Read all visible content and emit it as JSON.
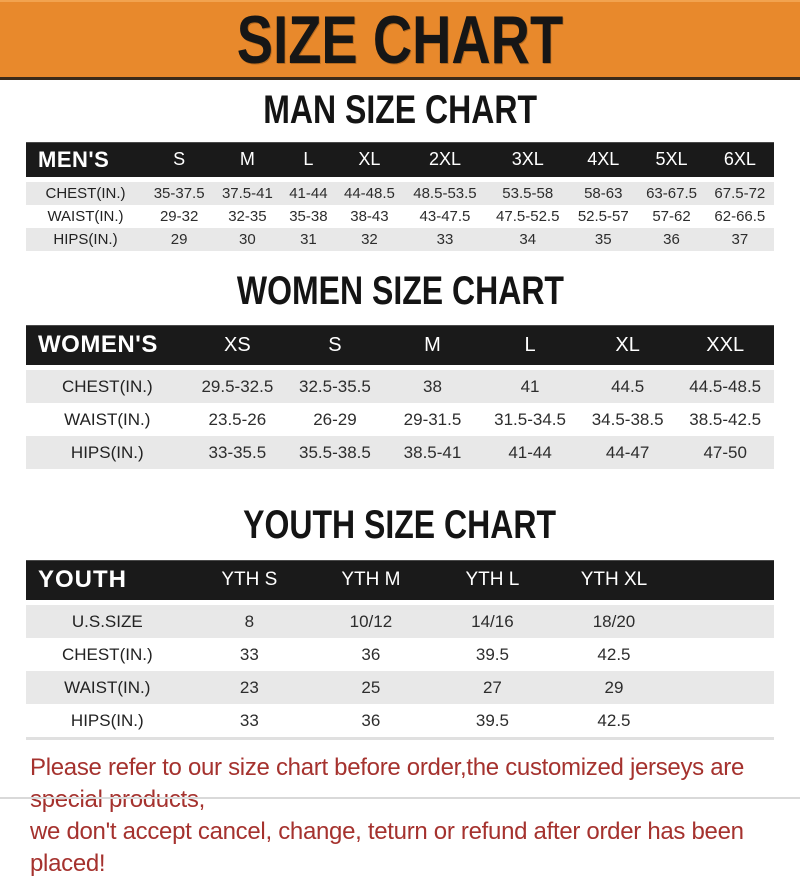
{
  "banner": {
    "title": "SIZE CHART"
  },
  "colors": {
    "banner_orange": "#e8892c",
    "table_header_black": "#1a1a1a",
    "row_gray": "#e8e8e8",
    "notice_red": "#a5322e"
  },
  "sections": [
    {
      "heading": "MAN SIZE CHART",
      "table": {
        "header_label": "MEN'S",
        "columns": [
          "S",
          "M",
          "L",
          "XL",
          "2XL",
          "3XL",
          "4XL",
          "5XL",
          "6XL"
        ],
        "rows": [
          {
            "label": "CHEST(IN.)",
            "values": [
              "35-37.5",
              "37.5-41",
              "41-44",
              "44-48.5",
              "48.5-53.5",
              "53.5-58",
              "58-63",
              "63-67.5",
              "67.5-72"
            ]
          },
          {
            "label": "WAIST(IN.)",
            "values": [
              "29-32",
              "32-35",
              "35-38",
              "38-43",
              "43-47.5",
              "47.5-52.5",
              "52.5-57",
              "57-62",
              "62-66.5"
            ]
          },
          {
            "label": "HIPS(IN.)",
            "values": [
              "29",
              "30",
              "31",
              "32",
              "33",
              "34",
              "35",
              "36",
              "37"
            ]
          }
        ]
      }
    },
    {
      "heading": "WOMEN SIZE CHART",
      "table": {
        "header_label": "WOMEN'S",
        "columns": [
          "XS",
          "S",
          "M",
          "L",
          "XL",
          "XXL"
        ],
        "rows": [
          {
            "label": "CHEST(IN.)",
            "values": [
              "29.5-32.5",
              "32.5-35.5",
              "38",
              "41",
              "44.5",
              "44.5-48.5"
            ]
          },
          {
            "label": "WAIST(IN.)",
            "values": [
              "23.5-26",
              "26-29",
              "29-31.5",
              "31.5-34.5",
              "34.5-38.5",
              "38.5-42.5"
            ]
          },
          {
            "label": "HIPS(IN.)",
            "values": [
              "33-35.5",
              "35.5-38.5",
              "38.5-41",
              "41-44",
              "44-47",
              "47-50"
            ]
          }
        ]
      }
    },
    {
      "heading": "YOUTH SIZE CHART",
      "table": {
        "header_label": "YOUTH",
        "columns": [
          "YTH S",
          "YTH M",
          "YTH L",
          "YTH XL"
        ],
        "rows": [
          {
            "label": "U.S.SIZE",
            "values": [
              "8",
              "10/12",
              "14/16",
              "18/20"
            ]
          },
          {
            "label": "CHEST(IN.)",
            "values": [
              "33",
              "36",
              "39.5",
              "42.5"
            ]
          },
          {
            "label": "WAIST(IN.)",
            "values": [
              "23",
              "25",
              "27",
              "29"
            ]
          },
          {
            "label": "HIPS(IN.)",
            "values": [
              "33",
              "36",
              "39.5",
              "42.5"
            ]
          }
        ]
      }
    }
  ],
  "footer": {
    "line1": "Please refer to our size chart before order,the customized jerseys are special products,",
    "line2": "we don't accept cancel, change, teturn or refund after order has been placed!"
  }
}
